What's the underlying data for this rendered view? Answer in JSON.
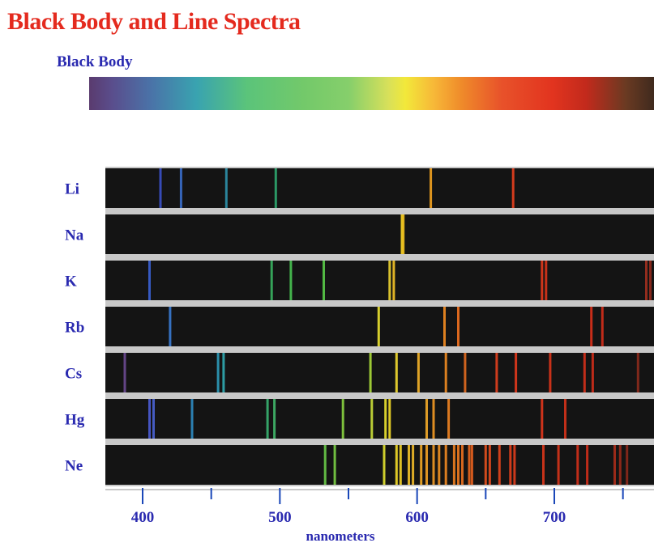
{
  "title": "Black Body and Line Spectra",
  "black_body_label": "Black Body",
  "axis": {
    "label": "nanometers",
    "ticks": [
      400,
      500,
      600,
      700
    ],
    "minor_ticks": [
      450,
      550,
      650,
      750
    ],
    "range_nm": [
      368,
      775
    ]
  },
  "colors": {
    "title": "#e42a1e",
    "labels": "#2a2ab0",
    "strip_background": "#141414",
    "separator": "#c8c8c8",
    "axis_line": "#1a47b8"
  },
  "spectra": [
    {
      "element": "Li",
      "lines": [
        {
          "nm": 413,
          "color": "#3a4fc4"
        },
        {
          "nm": 428,
          "color": "#3a6cc8"
        },
        {
          "nm": 461,
          "color": "#2e8fa8"
        },
        {
          "nm": 497,
          "color": "#2ea56e"
        },
        {
          "nm": 610,
          "color": "#f0a020"
        },
        {
          "nm": 670,
          "color": "#e5401e"
        }
      ]
    },
    {
      "element": "Na",
      "lines": [
        {
          "nm": 589,
          "color": "#f3d024"
        },
        {
          "nm": 590,
          "color": "#eec020"
        }
      ]
    },
    {
      "element": "K",
      "lines": [
        {
          "nm": 405,
          "color": "#3a5fd0"
        },
        {
          "nm": 494,
          "color": "#38b060"
        },
        {
          "nm": 508,
          "color": "#48c050"
        },
        {
          "nm": 532,
          "color": "#58c848"
        },
        {
          "nm": 580,
          "color": "#e8d030"
        },
        {
          "nm": 583,
          "color": "#f0c028"
        },
        {
          "nm": 691,
          "color": "#e03a1c"
        },
        {
          "nm": 694,
          "color": "#d8341a"
        },
        {
          "nm": 767,
          "color": "#a03020"
        },
        {
          "nm": 770,
          "color": "#902a1c"
        }
      ]
    },
    {
      "element": "Rb",
      "lines": [
        {
          "nm": 420,
          "color": "#3a7ad0"
        },
        {
          "nm": 572,
          "color": "#e8e030"
        },
        {
          "nm": 620,
          "color": "#f08a22"
        },
        {
          "nm": 630,
          "color": "#ee7020"
        },
        {
          "nm": 727,
          "color": "#d8301a"
        },
        {
          "nm": 735,
          "color": "#d02e1a"
        }
      ]
    },
    {
      "element": "Cs",
      "lines": [
        {
          "nm": 387,
          "color": "#6a4a90"
        },
        {
          "nm": 455,
          "color": "#2e9ab8"
        },
        {
          "nm": 459,
          "color": "#30a8b0"
        },
        {
          "nm": 566,
          "color": "#a8d838"
        },
        {
          "nm": 585,
          "color": "#f0d830"
        },
        {
          "nm": 601,
          "color": "#f0b028"
        },
        {
          "nm": 621,
          "color": "#ee8a22"
        },
        {
          "nm": 635,
          "color": "#e06a20"
        },
        {
          "nm": 658,
          "color": "#e0401e"
        },
        {
          "nm": 672,
          "color": "#e0381c"
        },
        {
          "nm": 697,
          "color": "#d8341a"
        },
        {
          "nm": 722,
          "color": "#d0301a"
        },
        {
          "nm": 728,
          "color": "#cc2e1a"
        },
        {
          "nm": 761,
          "color": "#8a2a1c"
        }
      ]
    },
    {
      "element": "Hg",
      "lines": [
        {
          "nm": 405,
          "color": "#4a5ad0"
        },
        {
          "nm": 408,
          "color": "#4a62d0"
        },
        {
          "nm": 436,
          "color": "#2e8ac0"
        },
        {
          "nm": 491,
          "color": "#38b070"
        },
        {
          "nm": 496,
          "color": "#40b468"
        },
        {
          "nm": 546,
          "color": "#88d040"
        },
        {
          "nm": 567,
          "color": "#c8dc38"
        },
        {
          "nm": 577,
          "color": "#e8e030"
        },
        {
          "nm": 580,
          "color": "#f0d828"
        },
        {
          "nm": 607,
          "color": "#f0a828"
        },
        {
          "nm": 612,
          "color": "#f09824"
        },
        {
          "nm": 623,
          "color": "#ee8222"
        },
        {
          "nm": 691,
          "color": "#e0361c"
        },
        {
          "nm": 708,
          "color": "#d0321a"
        }
      ]
    },
    {
      "element": "Ne",
      "lines": [
        {
          "nm": 533,
          "color": "#68c848"
        },
        {
          "nm": 540,
          "color": "#78cc44"
        },
        {
          "nm": 576,
          "color": "#e0e030"
        },
        {
          "nm": 585,
          "color": "#f0d828"
        },
        {
          "nm": 588,
          "color": "#f0d028"
        },
        {
          "nm": 594,
          "color": "#f0c028"
        },
        {
          "nm": 597,
          "color": "#f0b828"
        },
        {
          "nm": 603,
          "color": "#f0a826"
        },
        {
          "nm": 607,
          "color": "#f0a024"
        },
        {
          "nm": 612,
          "color": "#ee9824"
        },
        {
          "nm": 616,
          "color": "#ee9022"
        },
        {
          "nm": 621,
          "color": "#ee8822"
        },
        {
          "nm": 627,
          "color": "#ec7e20"
        },
        {
          "nm": 630,
          "color": "#ea7820"
        },
        {
          "nm": 633,
          "color": "#e87020"
        },
        {
          "nm": 638,
          "color": "#e6661e"
        },
        {
          "nm": 640,
          "color": "#e4601e"
        },
        {
          "nm": 650,
          "color": "#e2501e"
        },
        {
          "nm": 653,
          "color": "#e04a1e"
        },
        {
          "nm": 660,
          "color": "#e0441c"
        },
        {
          "nm": 668,
          "color": "#de401c"
        },
        {
          "nm": 671,
          "color": "#dc3c1c"
        },
        {
          "nm": 692,
          "color": "#d8361a"
        },
        {
          "nm": 703,
          "color": "#d4341a"
        },
        {
          "nm": 717,
          "color": "#d0301a"
        },
        {
          "nm": 724,
          "color": "#cc2e1a"
        },
        {
          "nm": 744,
          "color": "#a82c1a"
        },
        {
          "nm": 748,
          "color": "#982a1a"
        },
        {
          "nm": 753,
          "color": "#8a281a"
        }
      ]
    }
  ]
}
